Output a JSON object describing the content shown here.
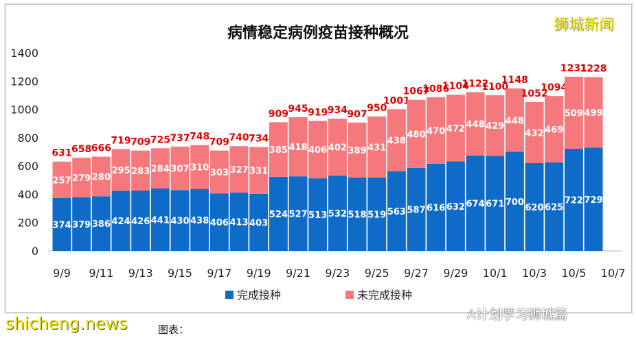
{
  "chart_data": {
    "type": "bar",
    "stacked": true,
    "title": "病情稳定病例疫苗接种概况",
    "categories": [
      "9/9",
      "9/10",
      "9/11",
      "9/12",
      "9/13",
      "9/14",
      "9/15",
      "9/16",
      "9/17",
      "9/18",
      "9/19",
      "9/20",
      "9/21",
      "9/22",
      "9/23",
      "9/24",
      "9/25",
      "9/26",
      "9/27",
      "9/28",
      "9/29",
      "9/30",
      "10/1",
      "10/2",
      "10/3",
      "10/4",
      "10/5",
      "10/6"
    ],
    "x_tick_labels": [
      "9/9",
      "9/11",
      "9/13",
      "9/15",
      "9/17",
      "9/19",
      "9/21",
      "9/23",
      "9/25",
      "9/27",
      "9/29",
      "10/1",
      "10/3",
      "10/5",
      "10/7"
    ],
    "series": [
      {
        "name": "完成接种",
        "color": "#0f6bc8",
        "values": [
          374,
          379,
          386,
          424,
          426,
          441,
          430,
          438,
          406,
          413,
          403,
          524,
          527,
          513,
          532,
          518,
          519,
          563,
          587,
          616,
          632,
          674,
          671,
          700,
          620,
          625,
          722,
          729
        ]
      },
      {
        "name": "未完成接种",
        "color": "#f4787c",
        "values": [
          257,
          279,
          280,
          295,
          283,
          284,
          307,
          310,
          303,
          327,
          331,
          385,
          418,
          406,
          402,
          389,
          431,
          438,
          480,
          470,
          472,
          448,
          429,
          448,
          432,
          469,
          509,
          499
        ]
      }
    ],
    "totals": [
      631,
      658,
      666,
      719,
      709,
      725,
      737,
      748,
      709,
      740,
      734,
      909,
      945,
      919,
      934,
      907,
      950,
      1001,
      1067,
      1086,
      1104,
      1122,
      1100,
      1148,
      1052,
      1094,
      1231,
      1228
    ],
    "total_label_color": "#e00000",
    "ylim": [
      0,
      1400
    ],
    "y_ticks": [
      0,
      200,
      400,
      600,
      800,
      1000,
      1200,
      1400
    ],
    "grid": false,
    "legend": "bottom"
  },
  "watermarks": {
    "top_right": "狮城新闻",
    "bottom_left": "shicheng.news",
    "bottom_right": "A计划学习狮城篇"
  },
  "caption": "图表："
}
